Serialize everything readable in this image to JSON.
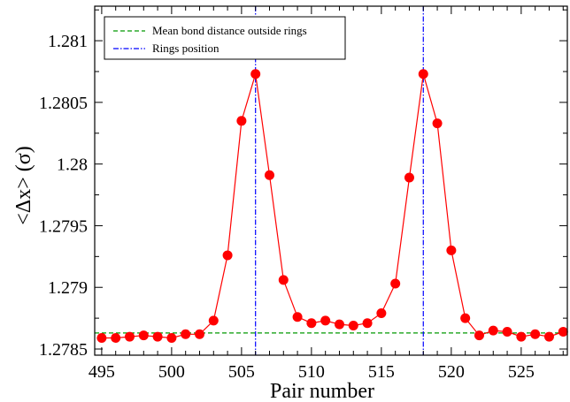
{
  "chart_data": {
    "type": "line",
    "title": "",
    "xlabel": "Pair number",
    "ylabel": "<Δx> (σ)",
    "xlim": [
      494.5,
      528.3
    ],
    "ylim": [
      1.27845,
      1.28128
    ],
    "x_ticks": [
      495,
      500,
      505,
      510,
      515,
      520,
      525
    ],
    "y_ticks": [
      1.2785,
      1.279,
      1.2795,
      1.28,
      1.2805,
      1.281
    ],
    "x_tick_labels": [
      "495",
      "500",
      "505",
      "510",
      "515",
      "520",
      "525"
    ],
    "y_tick_labels": [
      "1.2785",
      "1.279",
      "1.2795",
      "1.28",
      "1.2805",
      "1.281"
    ],
    "grid": false,
    "legend_position": "top-left",
    "series": [
      {
        "color": "#ff0000",
        "marker": "filled-circle",
        "x": [
          495,
          496,
          497,
          498,
          499,
          500,
          501,
          502,
          503,
          504,
          505,
          506,
          507,
          508,
          509,
          510,
          511,
          512,
          513,
          514,
          515,
          516,
          517,
          518,
          519,
          520,
          521,
          522,
          523,
          524,
          525,
          526,
          527,
          528
        ],
        "values": [
          1.27859,
          1.27859,
          1.2786,
          1.27861,
          1.2786,
          1.27859,
          1.27862,
          1.27862,
          1.27873,
          1.27926,
          1.28035,
          1.28073,
          1.27991,
          1.27906,
          1.27876,
          1.27871,
          1.27873,
          1.2787,
          1.27869,
          1.27871,
          1.27879,
          1.27903,
          1.27989,
          1.28073,
          1.28033,
          1.2793,
          1.27875,
          1.27861,
          1.27865,
          1.27864,
          1.2786,
          1.27862,
          1.2786,
          1.27864
        ]
      }
    ],
    "reference_lines": [
      {
        "name": "Mean bond distance outside rings",
        "orientation": "horizontal",
        "value": 1.27863,
        "color": "#009900",
        "style": "dashed"
      },
      {
        "name": "Rings position",
        "orientation": "vertical",
        "value": 506,
        "color": "#0000ff",
        "style": "dash-dot"
      },
      {
        "name": "Rings position",
        "orientation": "vertical",
        "value": 518,
        "color": "#0000ff",
        "style": "dash-dot"
      }
    ],
    "legend": [
      {
        "label": "Mean bond distance outside rings",
        "color": "#009900",
        "style": "dashed"
      },
      {
        "label": "Rings position",
        "color": "#0000ff",
        "style": "dash-dot"
      }
    ]
  }
}
